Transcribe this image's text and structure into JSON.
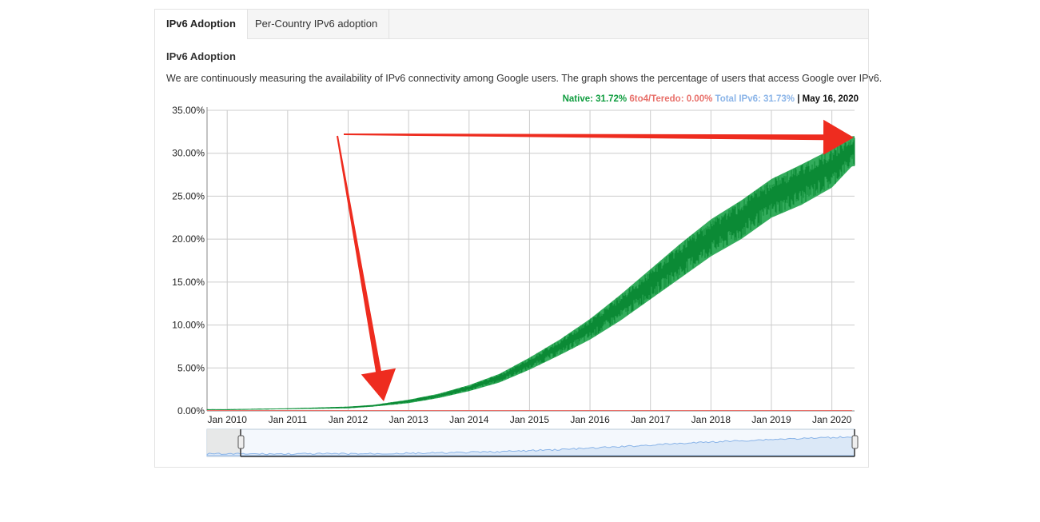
{
  "tabs": [
    {
      "label": "IPv6 Adoption"
    },
    {
      "label": "Per-Country IPv6 adoption"
    }
  ],
  "section_title": "IPv6 Adoption",
  "description": "We are continuously measuring the availability of IPv6 connectivity among Google users. The graph shows the percentage of users that access Google over IPv6.",
  "legend": {
    "native": "Native: 31.72%",
    "teredo": "6to4/Teredo: 0.00%",
    "total": "Total IPv6: 31.73%",
    "separator": " | ",
    "date": "May 16, 2020"
  },
  "colors": {
    "native": "#0f9d3f",
    "teredo": "#e8706a",
    "total": "#8ab4e8",
    "arrow": "#ee2c1f"
  },
  "chart_data": {
    "type": "area",
    "title": "",
    "xlabel": "",
    "ylabel": "",
    "ylim": [
      0,
      35
    ],
    "y_ticks": [
      "0.00%",
      "5.00%",
      "10.00%",
      "15.00%",
      "20.00%",
      "25.00%",
      "30.00%",
      "35.00%"
    ],
    "x_ticks": [
      "Jan 2010",
      "Jan 2011",
      "Jan 2012",
      "Jan 2013",
      "Jan 2014",
      "Jan 2015",
      "Jan 2016",
      "Jan 2017",
      "Jan 2018",
      "Jan 2019",
      "Jan 2020"
    ],
    "grid": true,
    "series": [
      {
        "name": "Native",
        "x": [
          "2009-09",
          "2010-01",
          "2011-01",
          "2012-01",
          "2012-06",
          "2013-01",
          "2013-07",
          "2014-01",
          "2014-07",
          "2015-01",
          "2015-07",
          "2016-01",
          "2016-07",
          "2017-01",
          "2017-07",
          "2018-01",
          "2018-07",
          "2019-01",
          "2019-07",
          "2020-01",
          "2020-05"
        ],
        "low": [
          0.1,
          0.1,
          0.2,
          0.3,
          0.5,
          0.9,
          1.5,
          2.3,
          3.3,
          4.8,
          6.5,
          8.3,
          10.5,
          13.0,
          15.5,
          18.0,
          20.0,
          22.5,
          24.0,
          26.0,
          28.5
        ],
        "high": [
          0.2,
          0.2,
          0.3,
          0.5,
          0.7,
          1.3,
          2.0,
          3.0,
          4.3,
          6.2,
          8.3,
          10.7,
          13.5,
          16.5,
          19.5,
          22.3,
          24.5,
          27.0,
          28.7,
          30.5,
          32.0
        ]
      },
      {
        "name": "6to4/Teredo",
        "x": [
          "2009-09",
          "2020-05"
        ],
        "low": [
          0.0,
          0.0
        ],
        "high": [
          0.0,
          0.0
        ]
      }
    ],
    "annotations": [
      "arrow pointing to early 2012 near 0%",
      "arrow pointing to May 2020 near 32%"
    ]
  }
}
